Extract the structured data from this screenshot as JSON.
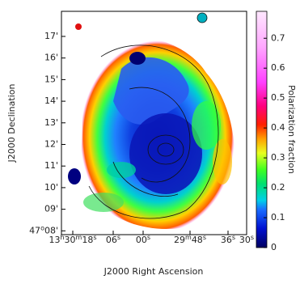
{
  "figure": {
    "x_axis_label": "J2000 Right Ascension",
    "y_axis_label": "J2000 Declination",
    "x_tick_labels": [
      [
        "13",
        "h",
        "30",
        "m",
        "18",
        "s"
      ],
      [
        "06",
        "s"
      ],
      [
        "00",
        "s"
      ],
      [
        "29",
        "m",
        "48",
        "s"
      ],
      [
        "36",
        "s"
      ],
      [
        "30",
        "s"
      ]
    ],
    "y_tick_labels": [
      [
        "17'"
      ],
      [
        "16'"
      ],
      [
        "15'"
      ],
      [
        "14'"
      ],
      [
        "13'"
      ],
      [
        "12'"
      ],
      [
        "11'"
      ],
      [
        "10'"
      ],
      [
        "09'"
      ],
      [
        "47",
        "o",
        "08'"
      ]
    ],
    "colorbar": {
      "label": "Polarization fraction",
      "range": [
        0,
        0.79
      ],
      "ticks": [
        0,
        0.1,
        0.2,
        0.3,
        0.4,
        0.5,
        0.6,
        0.7
      ]
    }
  }
}
